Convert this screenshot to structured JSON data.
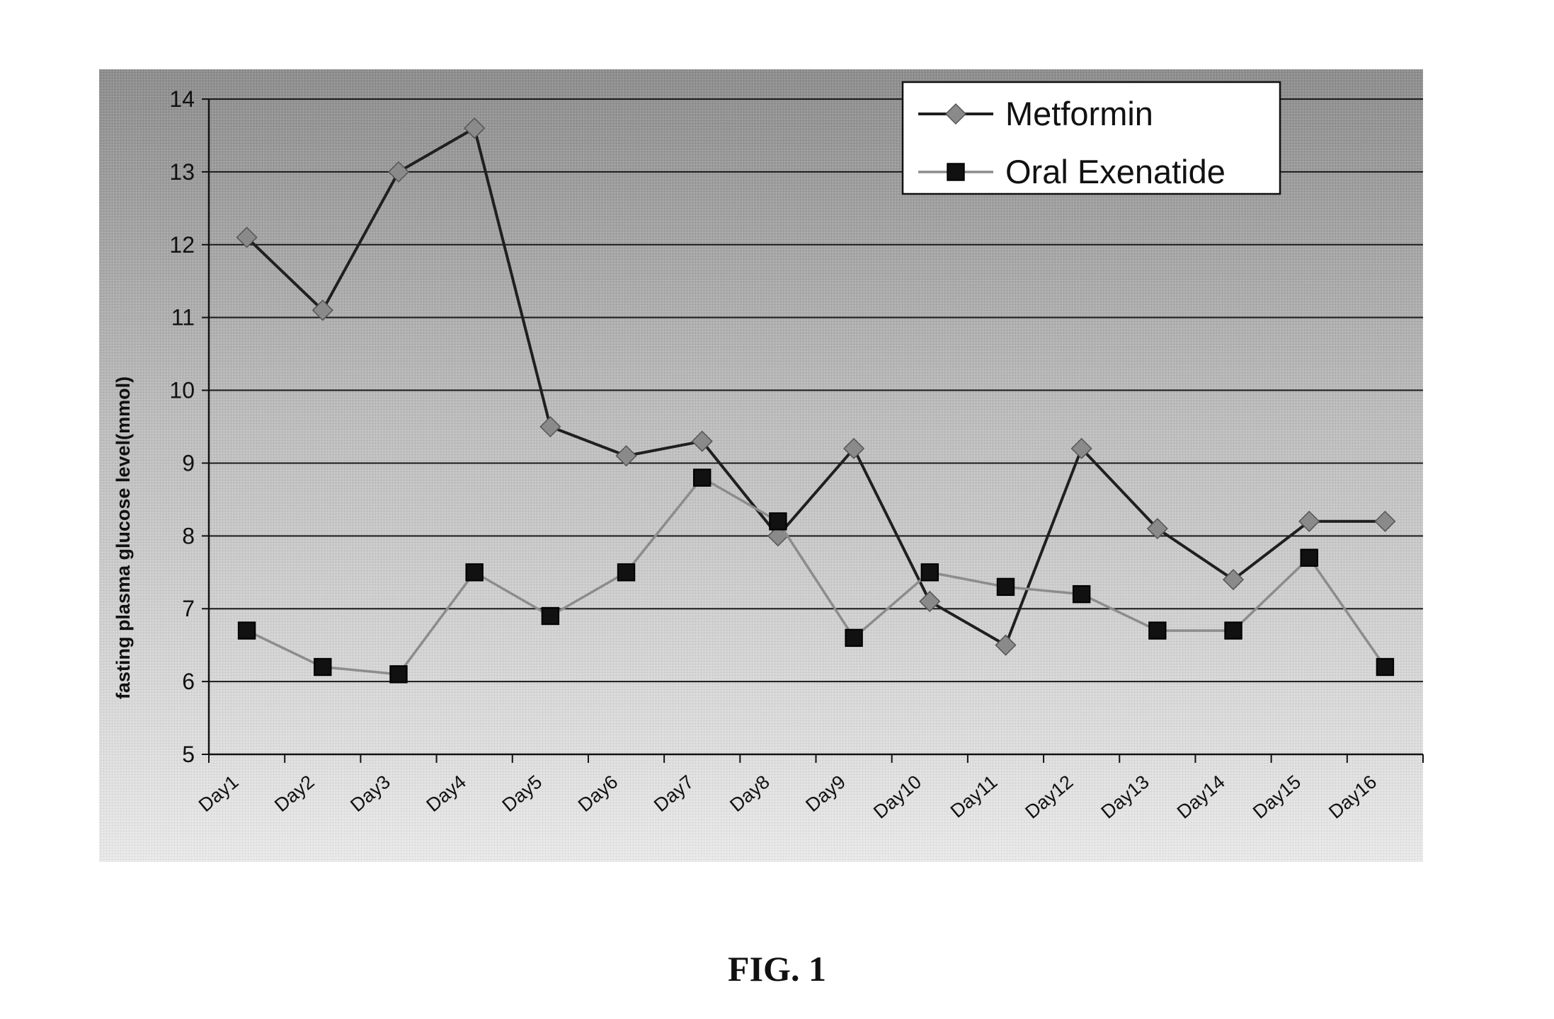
{
  "caption": "FIG. 1",
  "chart_data": {
    "type": "line",
    "title": "",
    "xlabel": "",
    "ylabel": "fasting plasma glucose level(mmol)",
    "ylim": [
      5,
      14
    ],
    "yticks": [
      5,
      6,
      7,
      8,
      9,
      10,
      11,
      12,
      13,
      14
    ],
    "categories": [
      "Day1",
      "Day2",
      "Day3",
      "Day4",
      "Day5",
      "Day6",
      "Day7",
      "Day8",
      "Day9",
      "Day10",
      "Day11",
      "Day12",
      "Day13",
      "Day14",
      "Day15",
      "Day16"
    ],
    "grid": true,
    "legend_position": "top-right",
    "series": [
      {
        "name": "Metformin",
        "marker": "diamond",
        "color": "#1f1f1f",
        "marker_color": "#8a8a8a",
        "values": [
          12.1,
          11.1,
          13.0,
          13.6,
          9.5,
          9.1,
          9.3,
          8.0,
          9.2,
          7.1,
          6.5,
          9.2,
          8.1,
          7.4,
          8.2,
          8.2
        ]
      },
      {
        "name": "Oral Exenatide",
        "marker": "square",
        "color": "#8c8c8c",
        "marker_color": "#111111",
        "values": [
          6.7,
          6.2,
          6.1,
          7.5,
          6.9,
          7.5,
          8.8,
          8.2,
          6.6,
          7.5,
          7.3,
          7.2,
          6.7,
          6.7,
          7.7,
          6.2
        ]
      }
    ]
  }
}
